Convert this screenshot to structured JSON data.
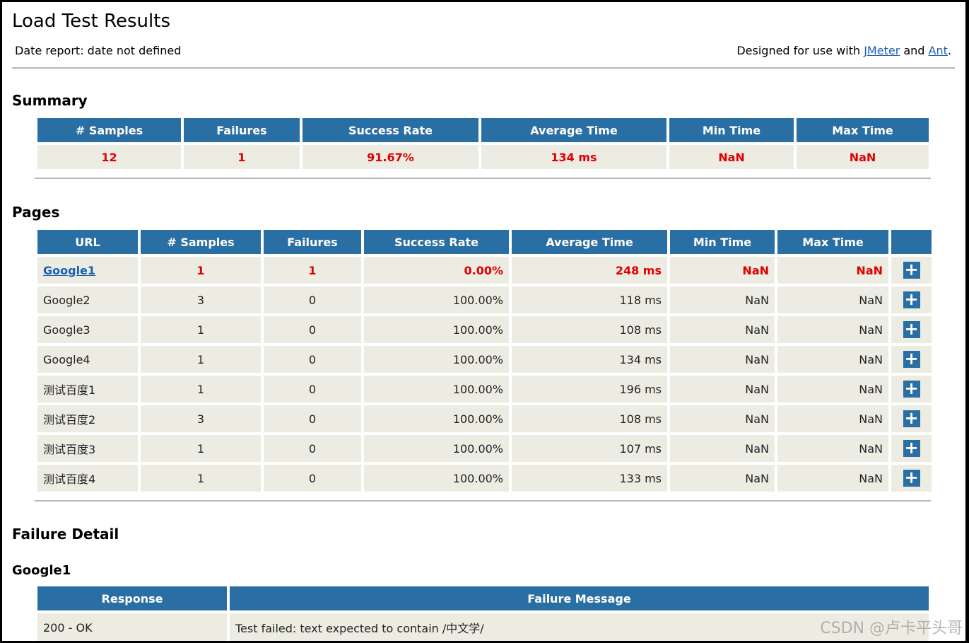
{
  "header": {
    "title": "Load Test Results",
    "date_report": "Date report: date not defined",
    "designed_prefix": "Designed for use with ",
    "link_jmeter": "JMeter",
    "and_text": " and ",
    "link_ant": "Ant",
    "period": "."
  },
  "summary": {
    "heading": "Summary",
    "columns": [
      "# Samples",
      "Failures",
      "Success Rate",
      "Average Time",
      "Min Time",
      "Max Time"
    ],
    "values": [
      "12",
      "1",
      "91.67%",
      "134 ms",
      "NaN",
      "NaN"
    ]
  },
  "pages": {
    "heading": "Pages",
    "columns": [
      "URL",
      "# Samples",
      "Failures",
      "Success Rate",
      "Average Time",
      "Min Time",
      "Max Time",
      ""
    ],
    "expand_icon": "+",
    "rows": [
      {
        "url": "Google1",
        "samples": "1",
        "failures": "1",
        "success_rate": "0.00%",
        "avg": "248 ms",
        "min": "NaN",
        "max": "NaN",
        "failed": true
      },
      {
        "url": "Google2",
        "samples": "3",
        "failures": "0",
        "success_rate": "100.00%",
        "avg": "118 ms",
        "min": "NaN",
        "max": "NaN",
        "failed": false
      },
      {
        "url": "Google3",
        "samples": "1",
        "failures": "0",
        "success_rate": "100.00%",
        "avg": "108 ms",
        "min": "NaN",
        "max": "NaN",
        "failed": false
      },
      {
        "url": "Google4",
        "samples": "1",
        "failures": "0",
        "success_rate": "100.00%",
        "avg": "134 ms",
        "min": "NaN",
        "max": "NaN",
        "failed": false
      },
      {
        "url": "测试百度1",
        "samples": "1",
        "failures": "0",
        "success_rate": "100.00%",
        "avg": "196 ms",
        "min": "NaN",
        "max": "NaN",
        "failed": false
      },
      {
        "url": "测试百度2",
        "samples": "3",
        "failures": "0",
        "success_rate": "100.00%",
        "avg": "108 ms",
        "min": "NaN",
        "max": "NaN",
        "failed": false
      },
      {
        "url": "测试百度3",
        "samples": "1",
        "failures": "0",
        "success_rate": "100.00%",
        "avg": "107 ms",
        "min": "NaN",
        "max": "NaN",
        "failed": false
      },
      {
        "url": "测试百度4",
        "samples": "1",
        "failures": "0",
        "success_rate": "100.00%",
        "avg": "133 ms",
        "min": "NaN",
        "max": "NaN",
        "failed": false
      }
    ]
  },
  "failure_detail": {
    "heading": "Failure Detail",
    "subheading": "Google1",
    "columns": [
      "Response",
      "Failure Message"
    ],
    "rows": [
      {
        "response": "200 - OK",
        "message": "Test failed: text expected to contain /中文学/"
      }
    ]
  },
  "watermark": "CSDN @卢卡平头哥",
  "colors": {
    "header_bg": "#2a6fa3",
    "cell_bg": "#edece2",
    "failure_text": "#e00000",
    "link": "#1a5fb4"
  }
}
